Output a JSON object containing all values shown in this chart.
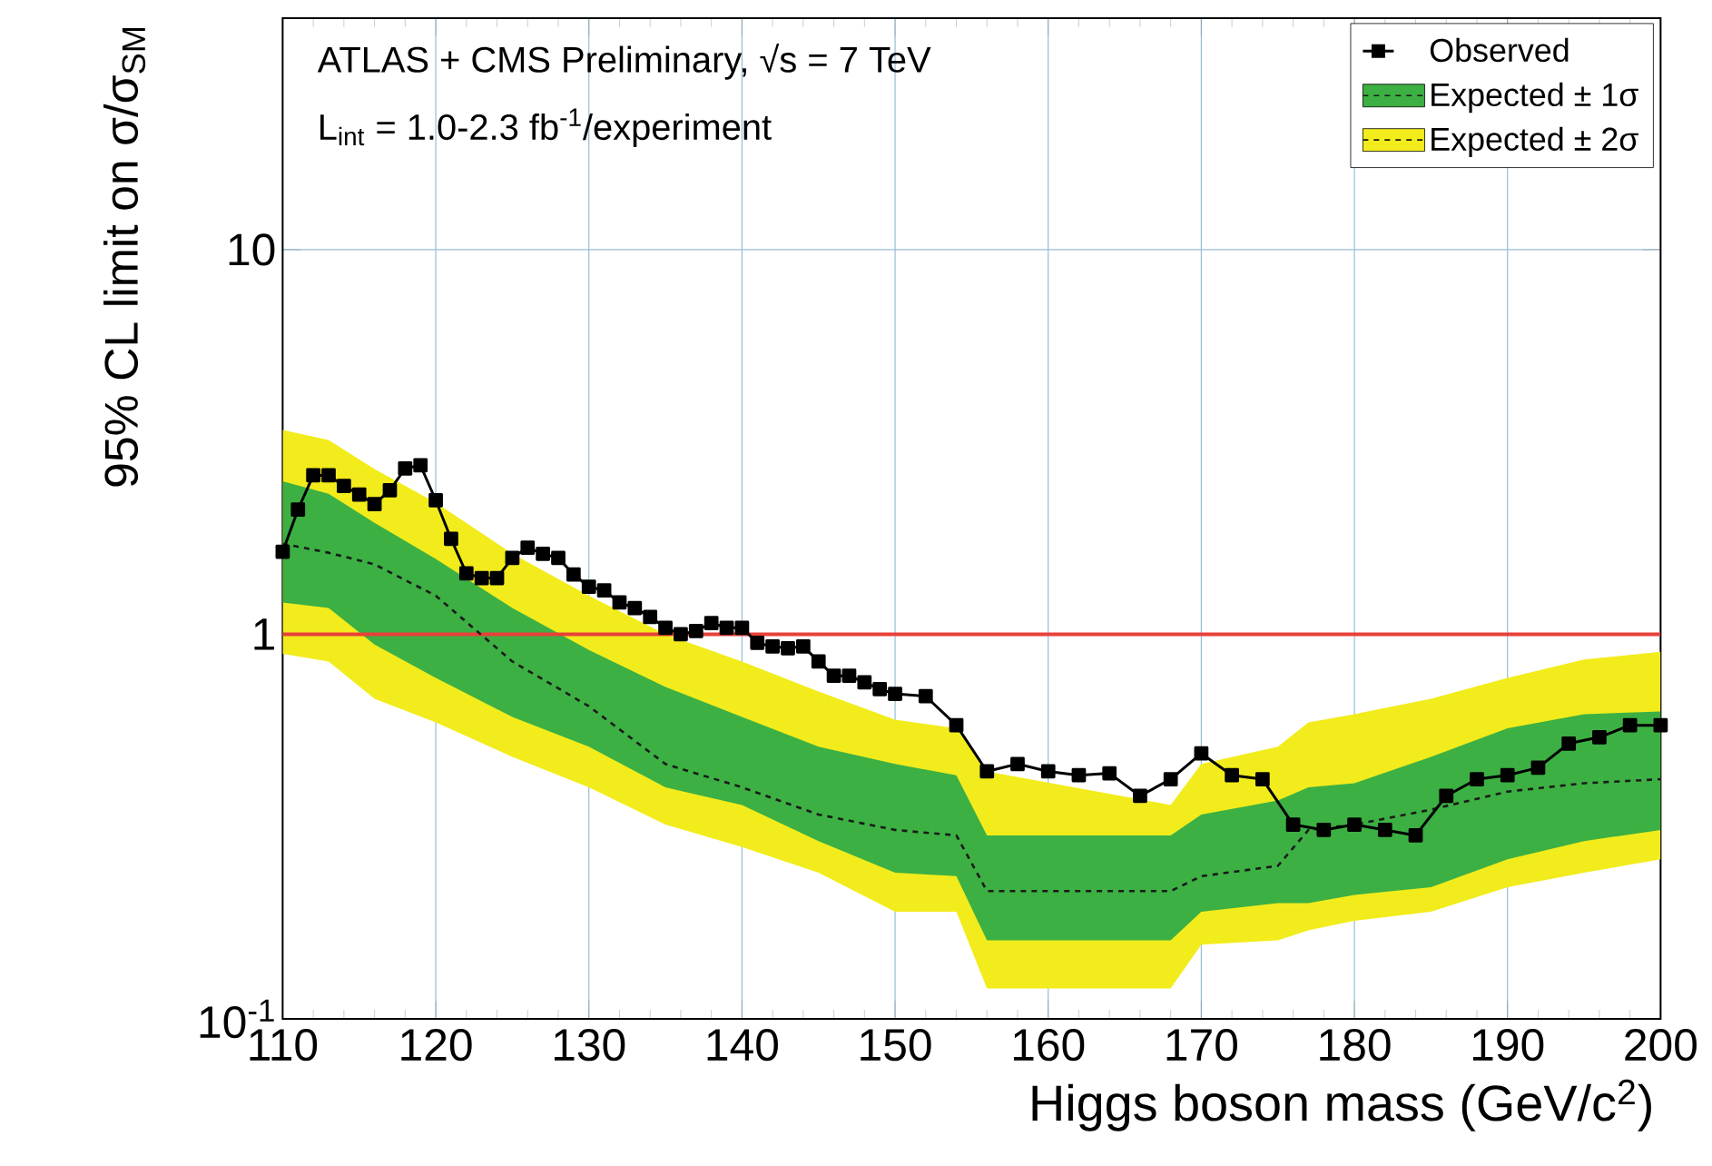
{
  "chart_data": {
    "type": "line",
    "xlabel": "Higgs boson mass (GeV/c$^{2}$)",
    "ylabel": "95% CL limit on σ/σ$_{SM}$",
    "annotations": [
      "ATLAS + CMS Preliminary, √s = 7 TeV",
      "L$_{int}$ = 1.0-2.3 fb$^{-1}$/experiment"
    ],
    "log": "y",
    "xlim": [
      110,
      200
    ],
    "ylim": [
      0.1,
      40
    ],
    "xticks": [
      110,
      120,
      130,
      140,
      150,
      160,
      170,
      180,
      190,
      200
    ],
    "yticks": [
      {
        "value": 0.1,
        "label": "10$^{-1}$"
      },
      1,
      10
    ],
    "grid": true,
    "legend": "top right",
    "ref_lines": [
      {
        "axis": "y",
        "value": 1,
        "color": "#e8403a"
      }
    ],
    "series": [
      {
        "name": "Expected ± 2σ",
        "color": "#f2ec1c",
        "x": [
          110,
          113,
          116,
          120,
          125,
          130,
          135,
          140,
          145,
          150,
          154,
          156,
          168,
          170,
          175,
          177,
          180,
          185,
          190,
          195,
          200
        ],
        "values": [
          null,
          null,
          null,
          null,
          null,
          null,
          null,
          null,
          null,
          null,
          null,
          null,
          null,
          null,
          null,
          null,
          null,
          null,
          null,
          null,
          null
        ],
        "lower": [
          0.89,
          0.85,
          0.68,
          0.59,
          0.48,
          0.4,
          0.32,
          0.28,
          0.24,
          0.19,
          0.19,
          0.12,
          0.12,
          0.156,
          0.16,
          0.17,
          0.18,
          0.19,
          0.22,
          0.24,
          0.26
        ],
        "upper": [
          3.4,
          3.2,
          2.69,
          2.2,
          1.62,
          1.26,
          1.0,
          0.85,
          0.71,
          0.6,
          0.57,
          0.44,
          0.36,
          0.46,
          0.51,
          0.59,
          0.62,
          0.68,
          0.77,
          0.86,
          0.9
        ]
      },
      {
        "name": "Expected ± 1σ",
        "color": "#3cb043",
        "x": [
          110,
          113,
          116,
          120,
          125,
          130,
          135,
          140,
          145,
          150,
          154,
          156,
          168,
          170,
          175,
          177,
          180,
          185,
          190,
          195,
          200
        ],
        "values": [
          null,
          null,
          null,
          null,
          null,
          null,
          null,
          null,
          null,
          null,
          null,
          null,
          null,
          null,
          null,
          null,
          null,
          null,
          null,
          null,
          null
        ],
        "lower": [
          1.21,
          1.17,
          0.94,
          0.77,
          0.61,
          0.51,
          0.4,
          0.36,
          0.29,
          0.24,
          0.235,
          0.16,
          0.16,
          0.19,
          0.2,
          0.2,
          0.21,
          0.22,
          0.26,
          0.29,
          0.31
        ],
        "upper": [
          2.5,
          2.32,
          1.95,
          1.57,
          1.17,
          0.91,
          0.73,
          0.61,
          0.51,
          0.46,
          0.43,
          0.3,
          0.3,
          0.34,
          0.37,
          0.4,
          0.41,
          0.48,
          0.57,
          0.62,
          0.63
        ]
      },
      {
        "color": "#1a1a1a",
        "line_style": "dashed",
        "x": [
          110,
          113,
          116,
          120,
          125,
          130,
          135,
          140,
          145,
          150,
          154,
          156,
          168,
          170,
          175,
          177,
          180,
          185,
          190,
          195,
          200
        ],
        "values": [
          1.72,
          1.63,
          1.52,
          1.26,
          0.85,
          0.65,
          0.46,
          0.4,
          0.34,
          0.31,
          0.3,
          0.215,
          0.215,
          0.235,
          0.25,
          0.31,
          0.32,
          0.35,
          0.39,
          0.41,
          0.42
        ]
      },
      {
        "name": "Observed",
        "color": "#000000",
        "marker": "square",
        "line_style": "solid",
        "x": [
          110,
          111,
          112,
          113,
          114,
          115,
          116,
          117,
          118,
          119,
          120,
          121,
          122,
          123,
          124,
          125,
          126,
          127,
          128,
          129,
          130,
          131,
          132,
          133,
          134,
          135,
          136,
          137,
          138,
          139,
          140,
          141,
          142,
          143,
          144,
          145,
          146,
          147,
          148,
          149,
          150,
          152,
          154,
          156,
          158,
          160,
          162,
          164,
          166,
          168,
          170,
          172,
          174,
          176,
          178,
          180,
          182,
          184,
          186,
          188,
          190,
          192,
          194,
          196,
          198,
          200
        ],
        "values": [
          1.64,
          2.11,
          2.59,
          2.59,
          2.43,
          2.31,
          2.18,
          2.37,
          2.7,
          2.75,
          2.23,
          1.77,
          1.44,
          1.4,
          1.4,
          1.58,
          1.68,
          1.62,
          1.58,
          1.43,
          1.33,
          1.3,
          1.21,
          1.17,
          1.11,
          1.04,
          1.0,
          1.02,
          1.07,
          1.04,
          1.04,
          0.95,
          0.93,
          0.92,
          0.93,
          0.85,
          0.78,
          0.78,
          0.75,
          0.72,
          0.7,
          0.69,
          0.58,
          0.44,
          0.46,
          0.44,
          0.43,
          0.435,
          0.38,
          0.42,
          0.49,
          0.43,
          0.42,
          0.32,
          0.31,
          0.32,
          0.31,
          0.3,
          0.38,
          0.42,
          0.43,
          0.45,
          0.52,
          0.54,
          0.58,
          0.58
        ]
      }
    ]
  }
}
